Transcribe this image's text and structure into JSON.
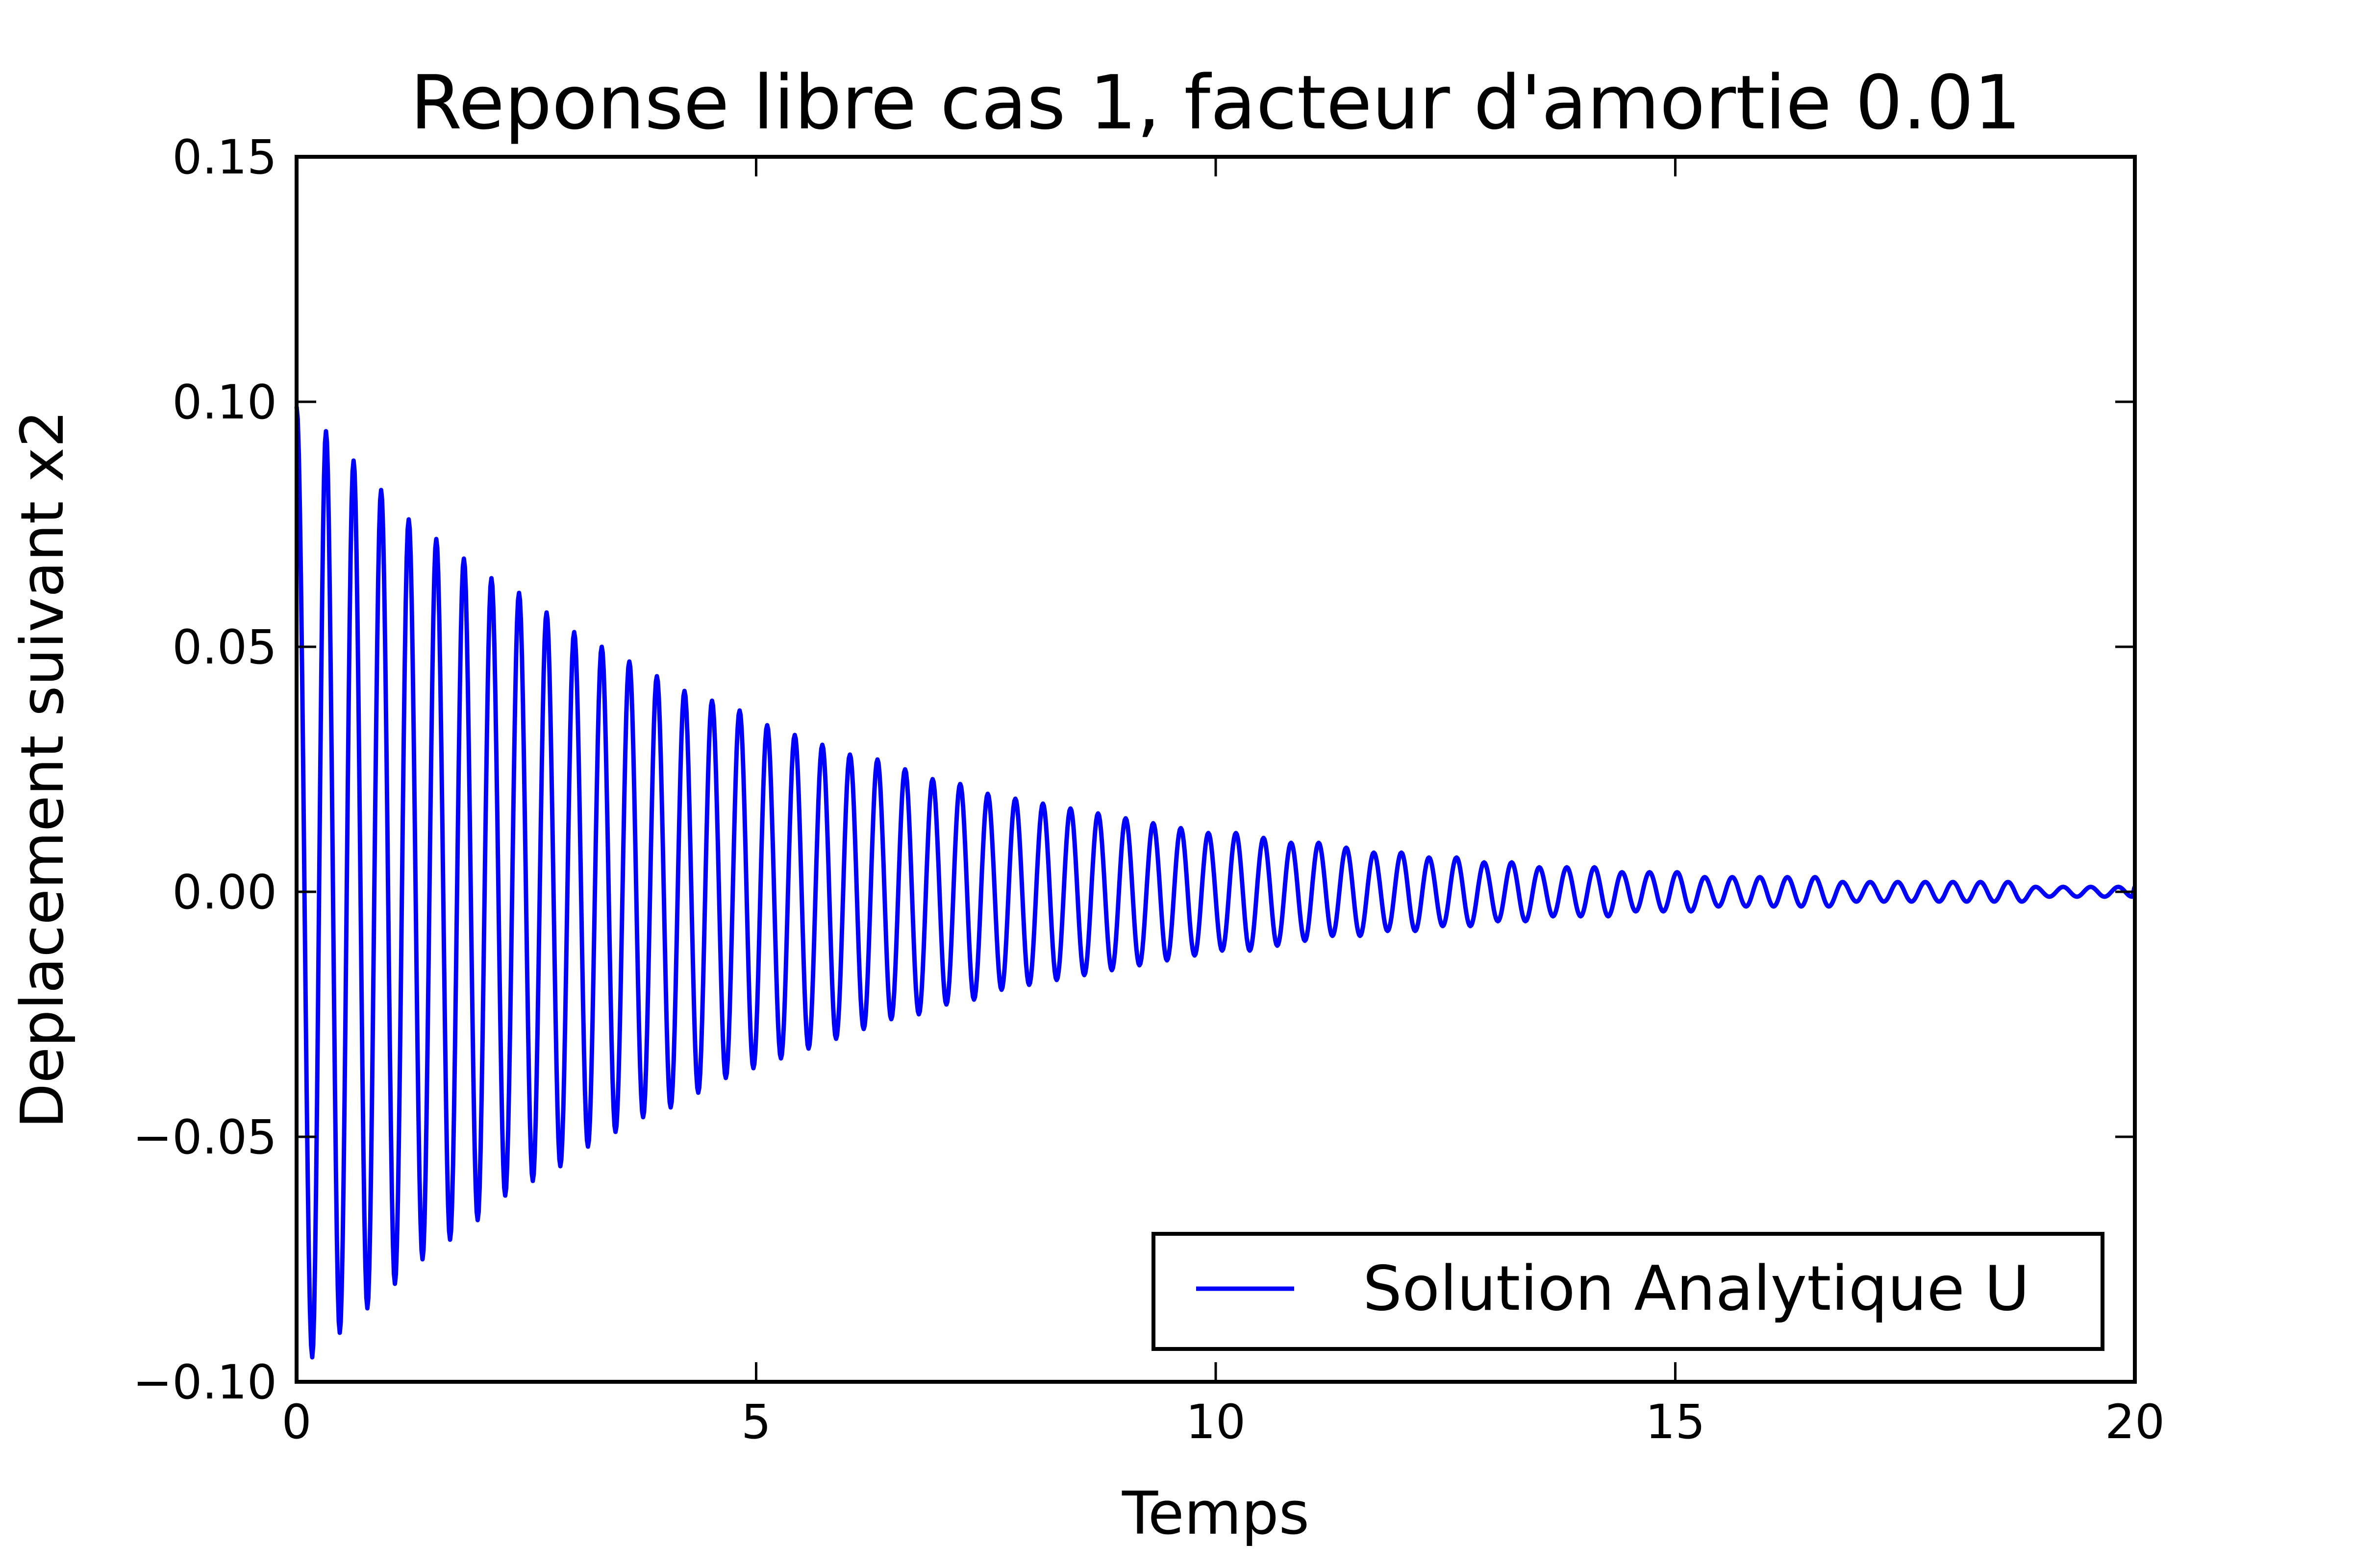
{
  "chart_data": {
    "type": "line",
    "title": "Reponse libre cas 1, facteur d'amortie 0.01",
    "xlabel": "Temps",
    "ylabel": "Deplacement suivant x2",
    "xlim": [
      0,
      20
    ],
    "ylim": [
      -0.1,
      0.15
    ],
    "xticks": [
      {
        "value": 0,
        "label": "0"
      },
      {
        "value": 5,
        "label": "5"
      },
      {
        "value": 10,
        "label": "10"
      },
      {
        "value": 15,
        "label": "15"
      },
      {
        "value": 20,
        "label": "20"
      }
    ],
    "yticks": [
      {
        "value": 0.15,
        "label": "0.15"
      },
      {
        "value": 0.1,
        "label": "0.10"
      },
      {
        "value": 0.05,
        "label": "0.05"
      },
      {
        "value": 0.0,
        "label": "0.00"
      },
      {
        "value": -0.05,
        "label": "−0.05"
      },
      {
        "value": -0.1,
        "label": "−0.10"
      }
    ],
    "grid": false,
    "legend_position": "lower-right",
    "series": [
      {
        "name": "Solution Analytique U",
        "color": "#0000ff",
        "x": [
          0.0,
          0.17,
          0.32,
          0.47,
          0.62,
          0.77,
          0.92,
          1.07,
          1.22,
          1.37,
          1.52,
          1.67,
          1.82,
          1.97,
          2.12,
          2.27,
          2.42,
          2.57,
          2.72,
          2.87,
          3.02,
          3.17,
          3.32,
          3.47,
          3.62,
          3.77,
          3.92,
          4.07,
          4.22,
          4.37,
          4.52,
          4.67,
          4.82,
          4.97,
          5.12,
          5.27,
          5.42,
          5.57,
          5.72,
          5.87,
          6.02,
          6.17,
          6.32,
          6.47,
          6.62,
          6.77,
          6.92,
          7.07,
          7.22,
          7.37,
          7.52,
          7.67,
          7.82,
          7.97,
          8.12,
          8.27,
          8.42,
          8.57,
          8.72,
          8.87,
          9.02,
          9.17,
          9.32,
          9.47,
          9.62,
          9.77,
          9.92,
          10.07,
          10.22,
          10.37,
          10.52,
          10.67,
          10.82,
          10.97,
          11.12,
          11.27,
          11.42,
          11.57,
          11.72,
          11.87,
          12.02,
          12.17,
          12.32,
          12.47,
          12.62,
          12.77,
          12.92,
          13.07,
          13.22,
          13.37,
          13.52,
          13.67,
          13.82,
          13.97,
          14.12,
          14.27,
          14.42,
          14.57,
          14.72,
          14.87,
          15.02,
          15.17,
          15.32,
          15.47,
          15.62,
          15.77,
          15.92,
          16.07,
          16.22,
          16.37,
          16.52,
          16.67,
          16.82,
          16.97,
          17.12,
          17.27,
          17.42,
          17.57,
          17.72,
          17.87,
          18.02,
          18.17,
          18.32,
          18.47,
          18.62,
          18.77,
          18.92,
          19.07,
          19.22,
          19.37,
          19.52,
          19.67,
          19.82,
          19.97,
          20.0
        ],
        "y": [
          0.099,
          -0.095,
          0.094,
          -0.09,
          0.088,
          -0.085,
          0.082,
          -0.08,
          0.076,
          -0.075,
          0.072,
          -0.071,
          0.068,
          -0.067,
          0.064,
          -0.062,
          0.061,
          -0.059,
          0.057,
          -0.056,
          0.053,
          -0.052,
          0.05,
          -0.049,
          0.047,
          -0.046,
          0.044,
          -0.044,
          0.041,
          -0.041,
          0.039,
          -0.038,
          0.037,
          -0.036,
          0.034,
          -0.034,
          0.032,
          -0.032,
          0.03,
          -0.03,
          0.028,
          -0.028,
          0.027,
          -0.026,
          0.025,
          -0.025,
          0.023,
          -0.023,
          0.022,
          -0.022,
          0.02,
          -0.02,
          0.019,
          -0.019,
          0.018,
          -0.018,
          0.017,
          -0.017,
          0.016,
          -0.016,
          0.015,
          -0.015,
          0.014,
          -0.014,
          0.013,
          -0.013,
          0.012,
          -0.012,
          0.012,
          -0.012,
          0.011,
          -0.011,
          0.01,
          -0.01,
          0.01,
          -0.009,
          0.009,
          -0.009,
          0.008,
          -0.008,
          0.008,
          -0.008,
          0.007,
          -0.007,
          0.007,
          -0.007,
          0.006,
          -0.006,
          0.006,
          -0.006,
          0.005,
          -0.005,
          0.005,
          -0.005,
          0.005,
          -0.005,
          0.004,
          -0.004,
          0.004,
          -0.004,
          0.004,
          -0.004,
          0.003,
          -0.003,
          0.003,
          -0.003,
          0.003,
          -0.003,
          0.003,
          -0.003,
          0.003,
          -0.003,
          0.002,
          -0.002,
          0.002,
          -0.002,
          0.002,
          -0.002,
          0.002,
          -0.002,
          0.002,
          -0.002,
          0.002,
          -0.002,
          0.002,
          -0.002,
          0.001,
          -0.001,
          0.001,
          -0.001,
          0.001,
          -0.001,
          0.001,
          -0.001,
          0.001
        ]
      }
    ]
  }
}
